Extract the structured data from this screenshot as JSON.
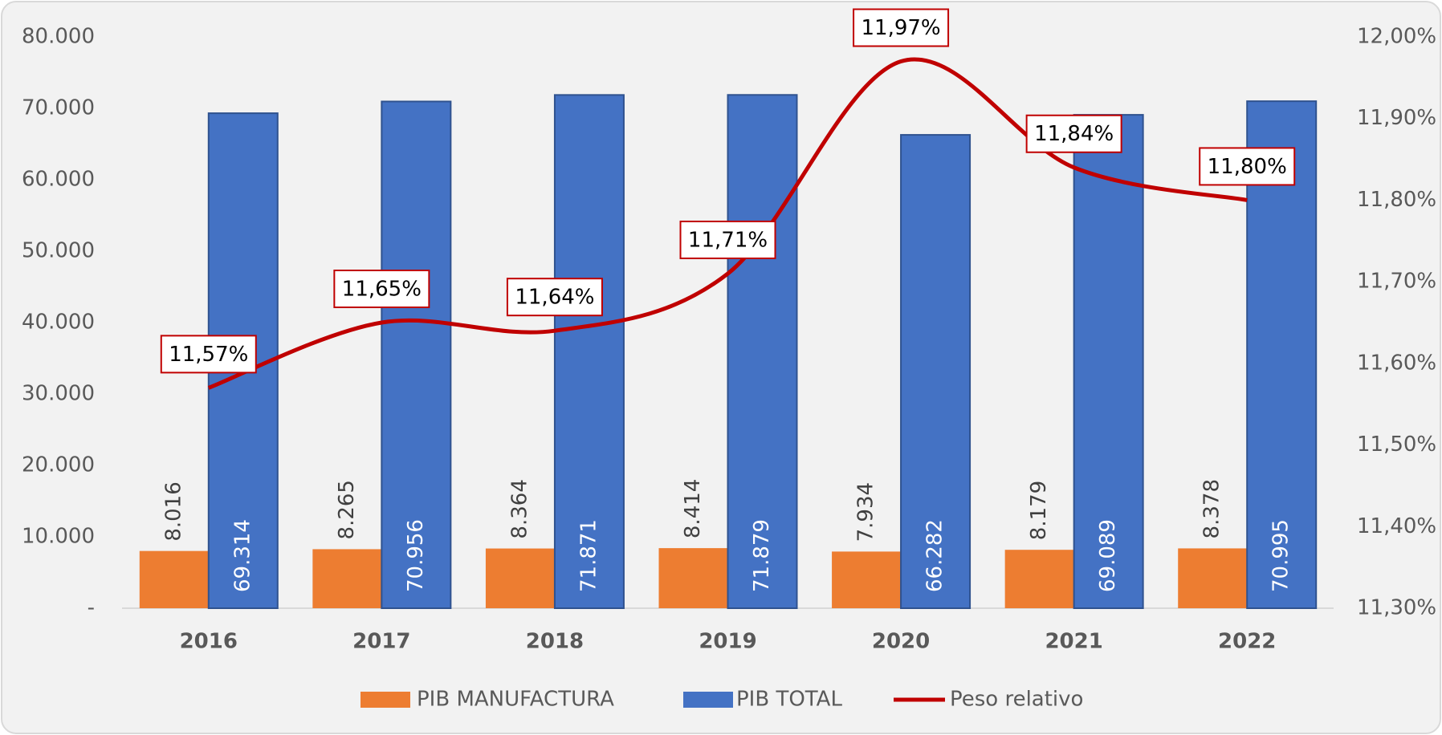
{
  "chart_data": {
    "type": "bar",
    "categories": [
      "2016",
      "2017",
      "2018",
      "2019",
      "2020",
      "2021",
      "2022"
    ],
    "series": [
      {
        "name": "PIB MANUFACTURA",
        "color": "#ed7d31",
        "values": [
          8016,
          8265,
          8364,
          8414,
          7934,
          8179,
          8378
        ],
        "value_labels": [
          "8.016",
          "8.265",
          "8.364",
          "8.414",
          "7.934",
          "8.179",
          "8.378"
        ]
      },
      {
        "name": "PIB TOTAL",
        "color": "#4472c4",
        "values": [
          69314,
          70956,
          71871,
          71879,
          66282,
          69089,
          70995
        ],
        "value_labels": [
          "69.314",
          "70.956",
          "71.871",
          "71.879",
          "66.282",
          "69.089",
          "70.995"
        ]
      },
      {
        "name": "Peso relativo",
        "color": "#c00000",
        "type": "line",
        "axis": "y2",
        "values": [
          11.57,
          11.65,
          11.64,
          11.71,
          11.97,
          11.84,
          11.8
        ],
        "value_labels": [
          "11,57%",
          "11,65%",
          "11,64%",
          "11,71%",
          "11,97%",
          "11,84%",
          "11,80%"
        ]
      }
    ],
    "ylim": [
      0,
      80000
    ],
    "yticks": [
      {
        "value": 0,
        "label": "-"
      },
      {
        "value": 10000,
        "label": "10.000"
      },
      {
        "value": 20000,
        "label": "20.000"
      },
      {
        "value": 30000,
        "label": "30.000"
      },
      {
        "value": 40000,
        "label": "40.000"
      },
      {
        "value": 50000,
        "label": "50.000"
      },
      {
        "value": 60000,
        "label": "60.000"
      },
      {
        "value": 70000,
        "label": "70.000"
      },
      {
        "value": 80000,
        "label": "80.000"
      }
    ],
    "y2lim": [
      11.3,
      12.0
    ],
    "y2ticks": [
      {
        "value": 11.3,
        "label": "11,30%"
      },
      {
        "value": 11.4,
        "label": "11,40%"
      },
      {
        "value": 11.5,
        "label": "11,50%"
      },
      {
        "value": 11.6,
        "label": "11,60%"
      },
      {
        "value": 11.7,
        "label": "11,70%"
      },
      {
        "value": 11.8,
        "label": "11,80%"
      },
      {
        "value": 11.9,
        "label": "11,90%"
      },
      {
        "value": 12.0,
        "label": "12,00%"
      }
    ],
    "grid": false,
    "legend": "bottom"
  }
}
